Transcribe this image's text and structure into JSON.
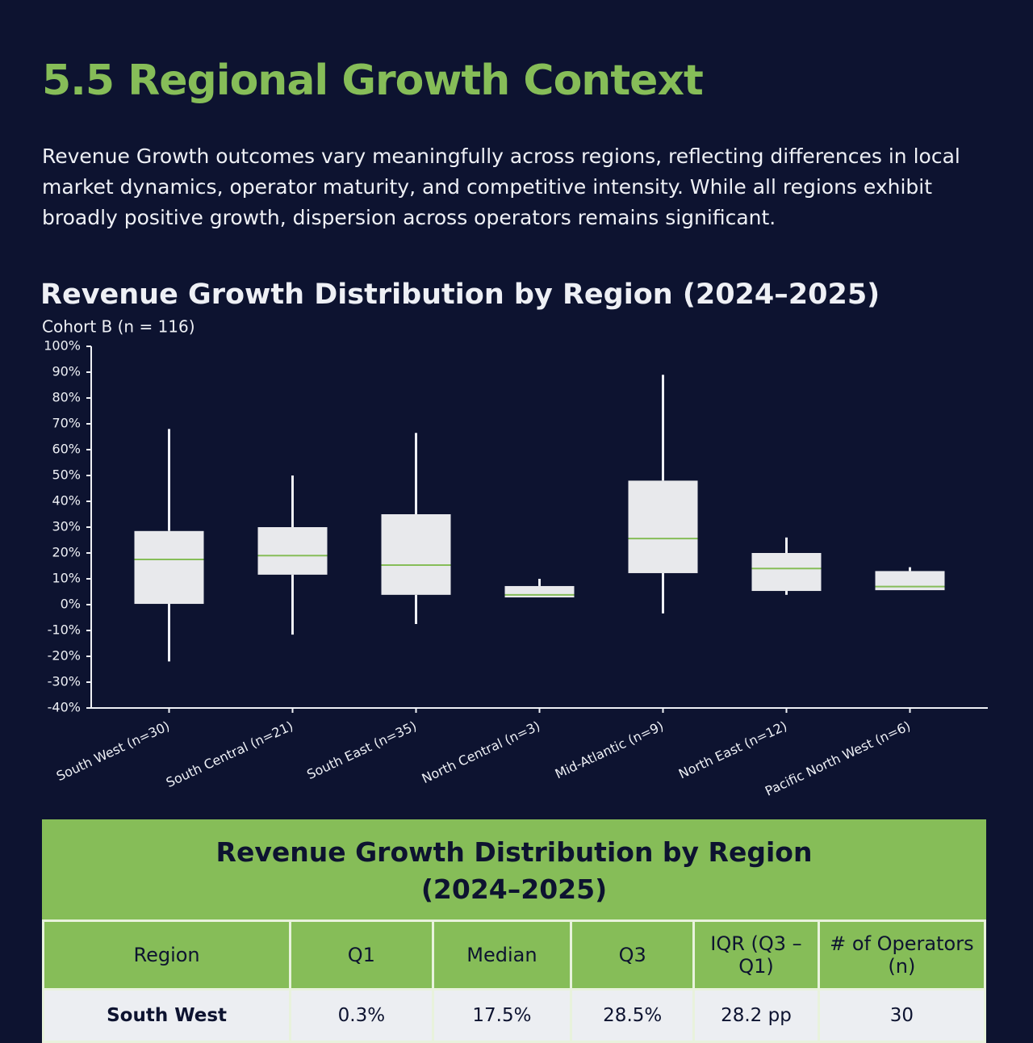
{
  "header": {
    "title": "5.5 Regional Growth Context",
    "paragraph": "Revenue Growth outcomes vary meaningfully across regions, reflecting differences in local market dynamics, operator maturity, and competitive intensity. While all regions exhibit broadly positive growth, dispersion across operators remains significant."
  },
  "chart_data": {
    "type": "box",
    "title": "Revenue Growth Distribution by Region (2024–2025)",
    "subtitle": "Cohort B (n = 116)",
    "categories": [
      "South West (n=30)",
      "South Central (n=21)",
      "South East (n=35)",
      "North Central (n=3)",
      "Mid-Atlantic (n=9)",
      "North East (n=12)",
      "Pacific North West (n=6)"
    ],
    "whisker_high": [
      68,
      50,
      66.5,
      10,
      89,
      26,
      14.5
    ],
    "q3": [
      28.5,
      30,
      35,
      7.2,
      48,
      20,
      13
    ],
    "median": [
      17.5,
      19,
      15.3,
      3.8,
      25.6,
      14,
      7
    ],
    "q1": [
      0.3,
      11.6,
      3.8,
      2.8,
      12.2,
      5.3,
      5.6
    ],
    "whisker_low": [
      -22,
      -11.6,
      -7.5,
      2.8,
      -3.4,
      3.8,
      5.6
    ],
    "box_color": "#e8e9ec",
    "median_color": "#86bd58",
    "ylim": [
      -40,
      100
    ],
    "yticks": [
      {
        "value": -40,
        "label": "-40%"
      },
      {
        "value": -30,
        "label": "-30%"
      },
      {
        "value": -20,
        "label": "-20%"
      },
      {
        "value": -10,
        "label": "-10%"
      },
      {
        "value": 0,
        "label": "0%"
      },
      {
        "value": 10,
        "label": "10%"
      },
      {
        "value": 20,
        "label": "20%"
      },
      {
        "value": 30,
        "label": "30%"
      },
      {
        "value": 40,
        "label": "40%"
      },
      {
        "value": 50,
        "label": "50%"
      },
      {
        "value": 60,
        "label": "60%"
      },
      {
        "value": 70,
        "label": "70%"
      },
      {
        "value": 80,
        "label": "80%"
      },
      {
        "value": 90,
        "label": "90%"
      },
      {
        "value": 100,
        "label": "100%"
      }
    ],
    "grid": false
  },
  "table": {
    "title": "Revenue Growth Distribution by Region (2024–2025)",
    "columns": [
      "Region",
      "Q1",
      "Median",
      "Q3",
      "IQR (Q3 – Q1)",
      "# of Operators (n)"
    ],
    "rows": [
      [
        "South West",
        "0.3%",
        "17.5%",
        "28.5%",
        "28.2 pp",
        "30"
      ]
    ]
  }
}
